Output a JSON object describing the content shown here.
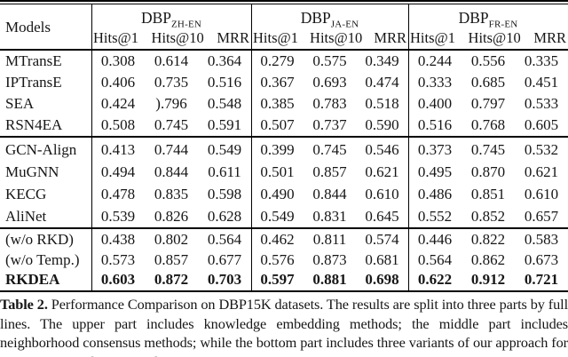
{
  "table": {
    "models_header": "Models",
    "groups": [
      {
        "name": "DBP",
        "subscript": "ZH-EN",
        "metrics": [
          "Hits@1",
          "Hits@10",
          "MRR"
        ]
      },
      {
        "name": "DBP",
        "subscript": "JA-EN",
        "metrics": [
          "Hits@1",
          "Hits@10",
          "MRR"
        ]
      },
      {
        "name": "DBP",
        "subscript": "FR-EN",
        "metrics": [
          "Hits@1",
          "Hits@10",
          "MRR"
        ]
      }
    ],
    "blocks": [
      {
        "rows": [
          {
            "model": "MTransE",
            "bold": false,
            "values": [
              "0.308",
              "0.614",
              "0.364",
              "0.279",
              "0.575",
              "0.349",
              "0.244",
              "0.556",
              "0.335"
            ]
          },
          {
            "model": "IPTransE",
            "bold": false,
            "values": [
              "0.406",
              "0.735",
              "0.516",
              "0.367",
              "0.693",
              "0.474",
              "0.333",
              "0.685",
              "0.451"
            ]
          },
          {
            "model": "SEA",
            "bold": false,
            "values": [
              "0.424",
              ").796",
              "0.548",
              "0.385",
              "0.783",
              "0.518",
              "0.400",
              "0.797",
              "0.533"
            ]
          },
          {
            "model": "RSN4EA",
            "bold": false,
            "values": [
              "0.508",
              "0.745",
              "0.591",
              "0.507",
              "0.737",
              "0.590",
              "0.516",
              "0.768",
              "0.605"
            ]
          }
        ]
      },
      {
        "rows": [
          {
            "model": "GCN-Align",
            "bold": false,
            "values": [
              "0.413",
              "0.744",
              "0.549",
              "0.399",
              "0.745",
              "0.546",
              "0.373",
              "0.745",
              "0.532"
            ]
          },
          {
            "model": "MuGNN",
            "bold": false,
            "values": [
              "0.494",
              "0.844",
              "0.611",
              "0.501",
              "0.857",
              "0.621",
              "0.495",
              "0.870",
              "0.621"
            ]
          },
          {
            "model": "KECG",
            "bold": false,
            "values": [
              "0.478",
              "0.835",
              "0.598",
              "0.490",
              "0.844",
              "0.610",
              "0.486",
              "0.851",
              "0.610"
            ]
          },
          {
            "model": "AliNet",
            "bold": false,
            "values": [
              "0.539",
              "0.826",
              "0.628",
              "0.549",
              "0.831",
              "0.645",
              "0.552",
              "0.852",
              "0.657"
            ]
          }
        ]
      },
      {
        "rows": [
          {
            "model": "(w/o RKD)",
            "bold": false,
            "values": [
              "0.438",
              "0.802",
              "0.564",
              "0.462",
              "0.811",
              "0.574",
              "0.446",
              "0.822",
              "0.583"
            ]
          },
          {
            "model": "(w/o Temp.)",
            "bold": false,
            "values": [
              "0.573",
              "0.857",
              "0.677",
              "0.576",
              "0.873",
              "0.681",
              "0.564",
              "0.862",
              "0.673"
            ]
          },
          {
            "model": "RKDEA",
            "bold": true,
            "values": [
              "0.603",
              "0.872",
              "0.703",
              "0.597",
              "0.881",
              "0.698",
              "0.622",
              "0.912",
              "0.721"
            ]
          }
        ]
      }
    ]
  },
  "caption": {
    "label": "Table 2.",
    "text": "Performance Comparison on DBP15K datasets. The results are split into three parts by full lines. The upper part includes knowledge embedding methods; the middle part includes neighborhood consensus methods; while the bottom part includes three variants of our approach for the purpose of ablation study."
  }
}
